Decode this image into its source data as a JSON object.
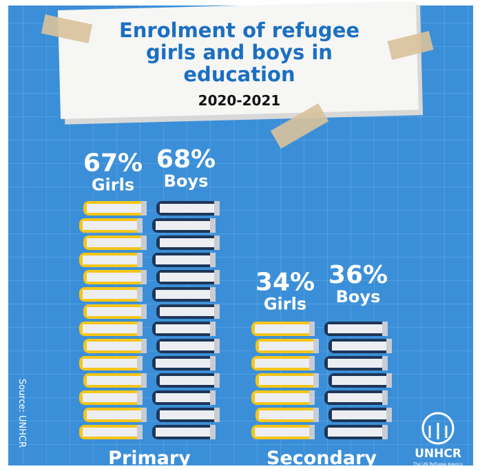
{
  "chart_data": {
    "type": "bar",
    "title": "Enrolment of refugee girls and boys in education",
    "subtitle": "2020-2021",
    "categories": [
      "Primary",
      "Secondary"
    ],
    "series": [
      {
        "name": "Girls",
        "color": "#f5c518",
        "values": [
          67,
          34
        ],
        "value_labels": [
          "67%",
          "34%"
        ]
      },
      {
        "name": "Boys",
        "color": "#1d3658",
        "values": [
          68,
          36
        ],
        "value_labels": [
          "68%",
          "36%"
        ]
      }
    ],
    "source": "Source: UNHCR",
    "logo": {
      "name": "UNHCR",
      "tagline": "The UN Refugee Agency"
    }
  }
}
